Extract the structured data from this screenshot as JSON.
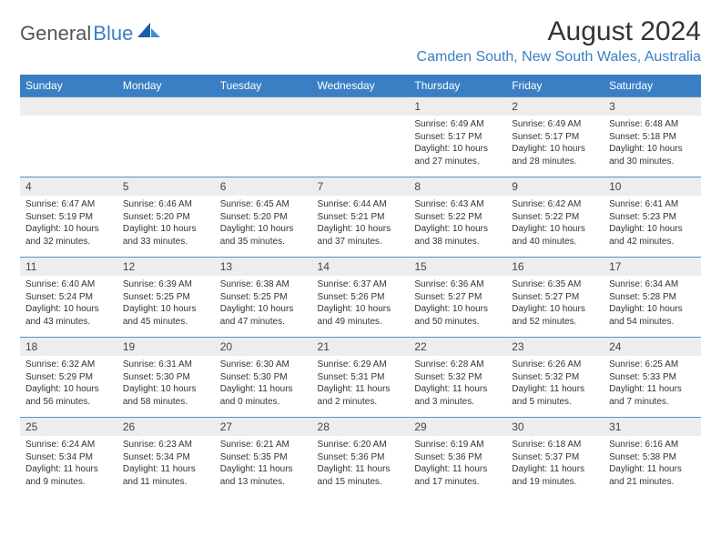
{
  "logo": {
    "textGray": "General",
    "textBlue": "Blue"
  },
  "title": "August 2024",
  "subtitle": "Camden South, New South Wales, Australia",
  "colors": {
    "headerBg": "#3a7fc4",
    "headerFg": "#ffffff",
    "dayRowBg": "#ededed",
    "cellBorder": "#5b8fbf",
    "accent": "#3a7fc4",
    "bodyText": "#333333"
  },
  "weekdays": [
    "Sunday",
    "Monday",
    "Tuesday",
    "Wednesday",
    "Thursday",
    "Friday",
    "Saturday"
  ],
  "grid": [
    [
      {
        "n": "",
        "lines": []
      },
      {
        "n": "",
        "lines": []
      },
      {
        "n": "",
        "lines": []
      },
      {
        "n": "",
        "lines": []
      },
      {
        "n": "1",
        "lines": [
          "Sunrise: 6:49 AM",
          "Sunset: 5:17 PM",
          "Daylight: 10 hours and 27 minutes."
        ]
      },
      {
        "n": "2",
        "lines": [
          "Sunrise: 6:49 AM",
          "Sunset: 5:17 PM",
          "Daylight: 10 hours and 28 minutes."
        ]
      },
      {
        "n": "3",
        "lines": [
          "Sunrise: 6:48 AM",
          "Sunset: 5:18 PM",
          "Daylight: 10 hours and 30 minutes."
        ]
      }
    ],
    [
      {
        "n": "4",
        "lines": [
          "Sunrise: 6:47 AM",
          "Sunset: 5:19 PM",
          "Daylight: 10 hours and 32 minutes."
        ]
      },
      {
        "n": "5",
        "lines": [
          "Sunrise: 6:46 AM",
          "Sunset: 5:20 PM",
          "Daylight: 10 hours and 33 minutes."
        ]
      },
      {
        "n": "6",
        "lines": [
          "Sunrise: 6:45 AM",
          "Sunset: 5:20 PM",
          "Daylight: 10 hours and 35 minutes."
        ]
      },
      {
        "n": "7",
        "lines": [
          "Sunrise: 6:44 AM",
          "Sunset: 5:21 PM",
          "Daylight: 10 hours and 37 minutes."
        ]
      },
      {
        "n": "8",
        "lines": [
          "Sunrise: 6:43 AM",
          "Sunset: 5:22 PM",
          "Daylight: 10 hours and 38 minutes."
        ]
      },
      {
        "n": "9",
        "lines": [
          "Sunrise: 6:42 AM",
          "Sunset: 5:22 PM",
          "Daylight: 10 hours and 40 minutes."
        ]
      },
      {
        "n": "10",
        "lines": [
          "Sunrise: 6:41 AM",
          "Sunset: 5:23 PM",
          "Daylight: 10 hours and 42 minutes."
        ]
      }
    ],
    [
      {
        "n": "11",
        "lines": [
          "Sunrise: 6:40 AM",
          "Sunset: 5:24 PM",
          "Daylight: 10 hours and 43 minutes."
        ]
      },
      {
        "n": "12",
        "lines": [
          "Sunrise: 6:39 AM",
          "Sunset: 5:25 PM",
          "Daylight: 10 hours and 45 minutes."
        ]
      },
      {
        "n": "13",
        "lines": [
          "Sunrise: 6:38 AM",
          "Sunset: 5:25 PM",
          "Daylight: 10 hours and 47 minutes."
        ]
      },
      {
        "n": "14",
        "lines": [
          "Sunrise: 6:37 AM",
          "Sunset: 5:26 PM",
          "Daylight: 10 hours and 49 minutes."
        ]
      },
      {
        "n": "15",
        "lines": [
          "Sunrise: 6:36 AM",
          "Sunset: 5:27 PM",
          "Daylight: 10 hours and 50 minutes."
        ]
      },
      {
        "n": "16",
        "lines": [
          "Sunrise: 6:35 AM",
          "Sunset: 5:27 PM",
          "Daylight: 10 hours and 52 minutes."
        ]
      },
      {
        "n": "17",
        "lines": [
          "Sunrise: 6:34 AM",
          "Sunset: 5:28 PM",
          "Daylight: 10 hours and 54 minutes."
        ]
      }
    ],
    [
      {
        "n": "18",
        "lines": [
          "Sunrise: 6:32 AM",
          "Sunset: 5:29 PM",
          "Daylight: 10 hours and 56 minutes."
        ]
      },
      {
        "n": "19",
        "lines": [
          "Sunrise: 6:31 AM",
          "Sunset: 5:30 PM",
          "Daylight: 10 hours and 58 minutes."
        ]
      },
      {
        "n": "20",
        "lines": [
          "Sunrise: 6:30 AM",
          "Sunset: 5:30 PM",
          "Daylight: 11 hours and 0 minutes."
        ]
      },
      {
        "n": "21",
        "lines": [
          "Sunrise: 6:29 AM",
          "Sunset: 5:31 PM",
          "Daylight: 11 hours and 2 minutes."
        ]
      },
      {
        "n": "22",
        "lines": [
          "Sunrise: 6:28 AM",
          "Sunset: 5:32 PM",
          "Daylight: 11 hours and 3 minutes."
        ]
      },
      {
        "n": "23",
        "lines": [
          "Sunrise: 6:26 AM",
          "Sunset: 5:32 PM",
          "Daylight: 11 hours and 5 minutes."
        ]
      },
      {
        "n": "24",
        "lines": [
          "Sunrise: 6:25 AM",
          "Sunset: 5:33 PM",
          "Daylight: 11 hours and 7 minutes."
        ]
      }
    ],
    [
      {
        "n": "25",
        "lines": [
          "Sunrise: 6:24 AM",
          "Sunset: 5:34 PM",
          "Daylight: 11 hours and 9 minutes."
        ]
      },
      {
        "n": "26",
        "lines": [
          "Sunrise: 6:23 AM",
          "Sunset: 5:34 PM",
          "Daylight: 11 hours and 11 minutes."
        ]
      },
      {
        "n": "27",
        "lines": [
          "Sunrise: 6:21 AM",
          "Sunset: 5:35 PM",
          "Daylight: 11 hours and 13 minutes."
        ]
      },
      {
        "n": "28",
        "lines": [
          "Sunrise: 6:20 AM",
          "Sunset: 5:36 PM",
          "Daylight: 11 hours and 15 minutes."
        ]
      },
      {
        "n": "29",
        "lines": [
          "Sunrise: 6:19 AM",
          "Sunset: 5:36 PM",
          "Daylight: 11 hours and 17 minutes."
        ]
      },
      {
        "n": "30",
        "lines": [
          "Sunrise: 6:18 AM",
          "Sunset: 5:37 PM",
          "Daylight: 11 hours and 19 minutes."
        ]
      },
      {
        "n": "31",
        "lines": [
          "Sunrise: 6:16 AM",
          "Sunset: 5:38 PM",
          "Daylight: 11 hours and 21 minutes."
        ]
      }
    ]
  ]
}
